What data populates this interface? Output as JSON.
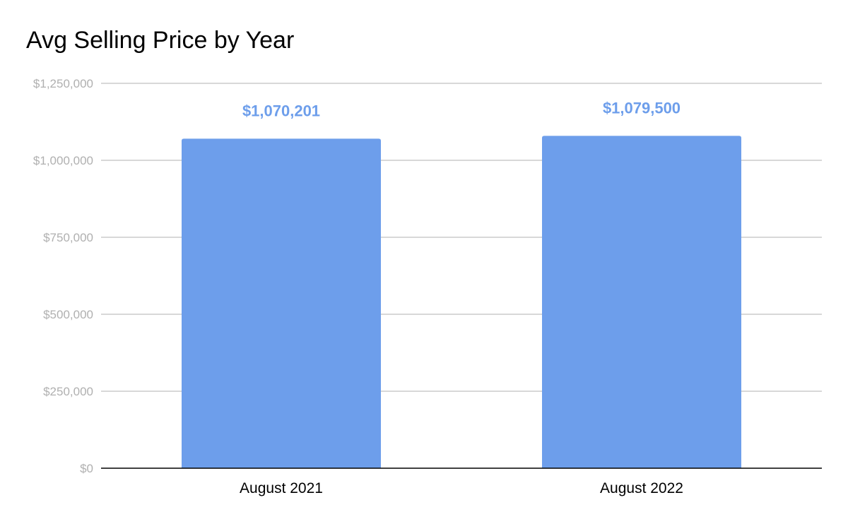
{
  "chart_data": {
    "type": "bar",
    "title": "Avg Selling Price by Year",
    "categories": [
      "August 2021",
      "August 2022"
    ],
    "values": [
      1070201,
      1079500
    ],
    "data_labels": [
      "$1,070,201",
      "$1,079,500"
    ],
    "y_tick_values": [
      0,
      250000,
      500000,
      750000,
      1000000,
      1250000
    ],
    "y_tick_labels": [
      "$0",
      "$250,000",
      "$500,000",
      "$750,000",
      "$1,000,000",
      "$1,250,000"
    ],
    "ylim": [
      0,
      1250000
    ],
    "xlabel": "",
    "ylabel": "",
    "grid": true,
    "legend": "none",
    "colors": {
      "bar": "#6d9eeb",
      "label": "#6d9eeb",
      "grid": "#cccccc",
      "axis": "#000000",
      "tick_text": "#b0b0b0"
    }
  }
}
